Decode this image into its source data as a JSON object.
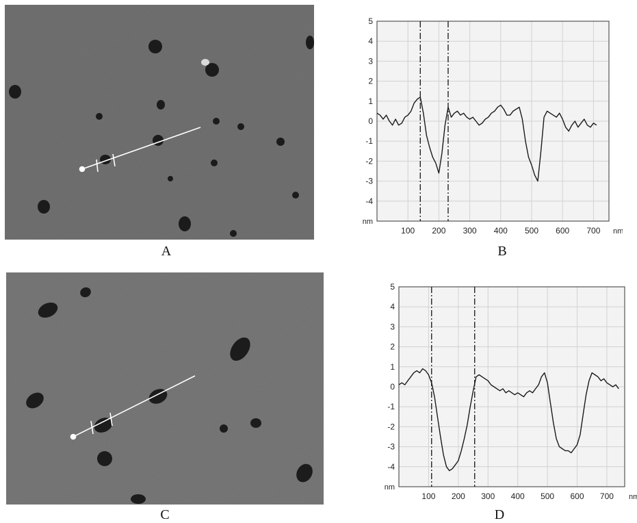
{
  "colors": {
    "plot_bg": "#f3f3f3",
    "grid": "#d2d2d2",
    "axis": "#555555",
    "trace": "#1a1a1a",
    "afm_bg": "#6e6e6e",
    "pit": "#1a1a1a",
    "scan_line": "#ffffff"
  },
  "panels": {
    "a": {
      "label": "A"
    },
    "b": {
      "label": "B"
    },
    "c": {
      "label": "C"
    },
    "d": {
      "label": "D"
    }
  },
  "chart_data": [
    {
      "panel": "B",
      "type": "line",
      "xlabel": "nm",
      "ylabel": "nm",
      "xlim": [
        0,
        750
      ],
      "ylim": [
        -5,
        5
      ],
      "x_ticks": [
        100,
        200,
        300,
        400,
        500,
        600,
        700
      ],
      "y_ticks": [
        5,
        4,
        3,
        2,
        1,
        0,
        -1,
        -2,
        -3,
        -4
      ],
      "grid": true,
      "markers": [
        140,
        230
      ],
      "series": [
        {
          "x": [
            0,
            10,
            20,
            30,
            40,
            50,
            60,
            70,
            80,
            90,
            100,
            110,
            120,
            130,
            140,
            150,
            160,
            170,
            180,
            190,
            200,
            210,
            220,
            230,
            240,
            250,
            260,
            270,
            280,
            290,
            300,
            310,
            320,
            330,
            340,
            350,
            360,
            370,
            380,
            390,
            400,
            410,
            420,
            430,
            440,
            450,
            460,
            470,
            480,
            490,
            500,
            510,
            520,
            530,
            540,
            550,
            560,
            570,
            580,
            590,
            600,
            610,
            620,
            630,
            640,
            650,
            660,
            670,
            680,
            690,
            700,
            710
          ],
          "y": [
            0.4,
            0.3,
            0.1,
            0.3,
            0,
            -0.2,
            0.1,
            -0.2,
            -0.1,
            0.2,
            0.3,
            0.5,
            0.9,
            1.1,
            1.2,
            0.4,
            -0.7,
            -1.3,
            -1.8,
            -2.1,
            -2.6,
            -1.6,
            -0.2,
            0.7,
            0.2,
            0.4,
            0.5,
            0.3,
            0.4,
            0.2,
            0.1,
            0.2,
            0,
            -0.2,
            -0.1,
            0.1,
            0.2,
            0.4,
            0.5,
            0.7,
            0.8,
            0.6,
            0.3,
            0.3,
            0.5,
            0.6,
            0.7,
            0.1,
            -1,
            -1.8,
            -2.2,
            -2.7,
            -3,
            -1.5,
            0.2,
            0.5,
            0.4,
            0.3,
            0.2,
            0.4,
            0.1,
            -0.3,
            -0.5,
            -0.2,
            0,
            -0.3,
            -0.1,
            0.1,
            -0.2,
            -0.3,
            -0.1,
            -0.2
          ]
        }
      ]
    },
    {
      "panel": "D",
      "type": "line",
      "xlabel": "nm",
      "ylabel": "nm",
      "xlim": [
        0,
        760
      ],
      "ylim": [
        -5,
        5
      ],
      "x_ticks": [
        100,
        200,
        300,
        400,
        500,
        600,
        700
      ],
      "y_ticks": [
        5,
        4,
        3,
        2,
        1,
        0,
        -1,
        -2,
        -3,
        -4
      ],
      "grid": true,
      "markers": [
        110,
        255
      ],
      "series": [
        {
          "x": [
            0,
            10,
            20,
            30,
            40,
            50,
            60,
            70,
            80,
            90,
            100,
            110,
            120,
            130,
            140,
            150,
            160,
            170,
            180,
            190,
            200,
            210,
            220,
            230,
            240,
            250,
            260,
            270,
            280,
            290,
            300,
            310,
            320,
            330,
            340,
            350,
            360,
            370,
            380,
            390,
            400,
            410,
            420,
            430,
            440,
            450,
            460,
            470,
            480,
            490,
            500,
            510,
            520,
            530,
            540,
            550,
            560,
            570,
            580,
            590,
            600,
            610,
            620,
            630,
            640,
            650,
            660,
            670,
            680,
            690,
            700,
            710,
            720,
            730,
            740
          ],
          "y": [
            0.1,
            0.2,
            0.1,
            0.3,
            0.5,
            0.7,
            0.8,
            0.7,
            0.9,
            0.8,
            0.6,
            0.2,
            -0.5,
            -1.5,
            -2.5,
            -3.4,
            -4,
            -4.2,
            -4.1,
            -3.9,
            -3.7,
            -3.2,
            -2.6,
            -1.9,
            -1,
            -0.2,
            0.5,
            0.6,
            0.5,
            0.4,
            0.3,
            0.1,
            0,
            -0.1,
            -0.2,
            -0.1,
            -0.3,
            -0.2,
            -0.3,
            -0.4,
            -0.3,
            -0.4,
            -0.5,
            -0.3,
            -0.2,
            -0.3,
            -0.1,
            0.1,
            0.5,
            0.7,
            0.2,
            -0.8,
            -1.8,
            -2.6,
            -3,
            -3.1,
            -3.2,
            -3.2,
            -3.3,
            -3.1,
            -2.9,
            -2.4,
            -1.4,
            -0.4,
            0.3,
            0.7,
            0.6,
            0.5,
            0.3,
            0.4,
            0.2,
            0.1,
            0,
            0.1,
            -0.1
          ]
        }
      ]
    }
  ]
}
